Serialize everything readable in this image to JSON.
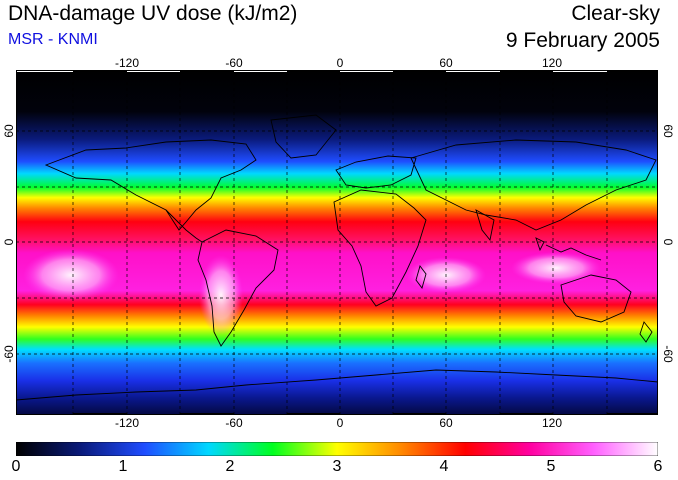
{
  "header": {
    "title": "DNA-damage UV dose (kJ/m2)",
    "source": "MSR - KNMI",
    "condition": "Clear-sky",
    "date": "9 February 2005"
  },
  "map": {
    "longitude_labels": [
      "-120",
      "-60",
      "0",
      "60",
      "120"
    ],
    "latitude_labels_left": [
      "60",
      "0",
      "-60"
    ],
    "latitude_labels_right": [
      "60",
      "0",
      "-60"
    ]
  },
  "colorbar": {
    "tick_labels": [
      "0",
      "1",
      "2",
      "3",
      "4",
      "5",
      "6"
    ],
    "min": 0,
    "max": 6,
    "colors": [
      "#000000",
      "#0a1a7a",
      "#1f4dff",
      "#00d8ff",
      "#00ff20",
      "#ffff00",
      "#ff8800",
      "#ff0000",
      "#ff00a0",
      "#ff60ff",
      "#ffffff"
    ]
  }
}
